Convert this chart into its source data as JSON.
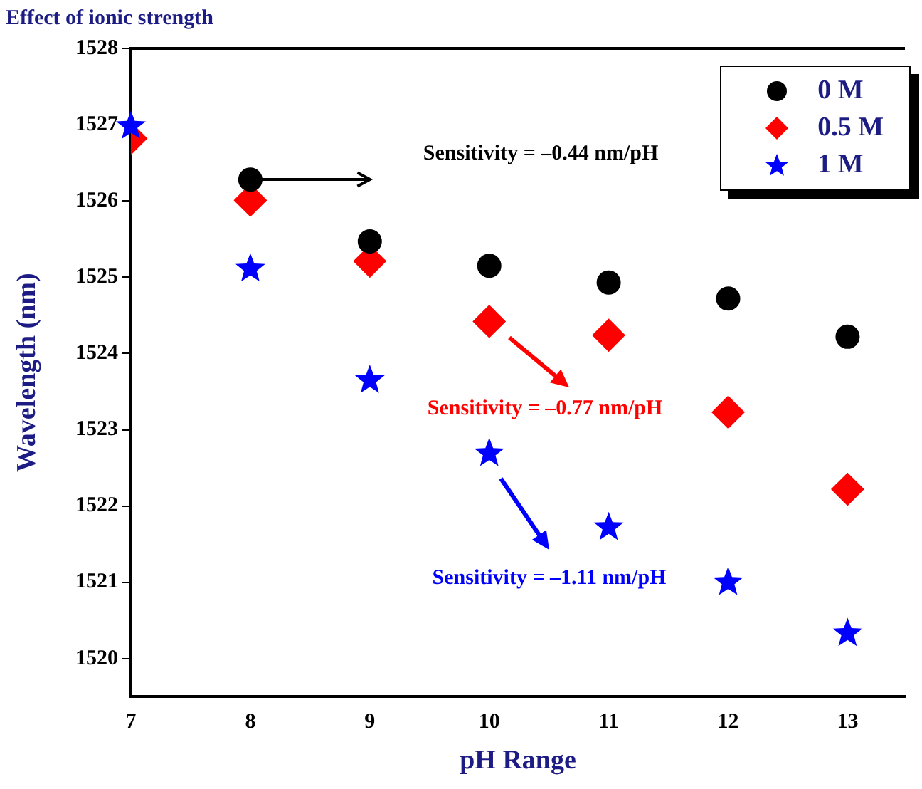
{
  "chart_data": {
    "type": "scatter",
    "title": "Effect of ionic strength",
    "xlabel": "pH Range",
    "ylabel": "Wavelength (nm)",
    "x": [
      7,
      8,
      9,
      10,
      11,
      12,
      13
    ],
    "series": [
      {
        "name": "0 M",
        "color": "#000000",
        "marker": "circle",
        "values": [
          null,
          1526.28,
          1525.47,
          1525.15,
          1524.93,
          1524.72,
          1524.22
        ]
      },
      {
        "name": "0.5 M",
        "color": "#ff0000",
        "marker": "diamond",
        "values": [
          1526.82,
          1526.01,
          1525.21,
          1524.42,
          1524.24,
          1523.23,
          1522.22
        ]
      },
      {
        "name": "1 M",
        "color": "#0000ff",
        "marker": "star",
        "values": [
          1526.98,
          1525.11,
          1523.65,
          1522.69,
          1521.72,
          1521.0,
          1520.33
        ]
      }
    ],
    "xlim": [
      7,
      13.48
    ],
    "ylim": [
      1519.5,
      1528
    ],
    "xticks": [
      7,
      8,
      9,
      10,
      11,
      12,
      13
    ],
    "yticks": [
      1520,
      1521,
      1522,
      1523,
      1524,
      1525,
      1526,
      1527,
      1528
    ],
    "grid": false,
    "legend": "top right",
    "annotations": [
      "Sensitivity = –0.44 nm/pH",
      "Sensitivity = –0.77 nm/pH",
      "Sensitivity = –1.11 nm/pH"
    ]
  }
}
